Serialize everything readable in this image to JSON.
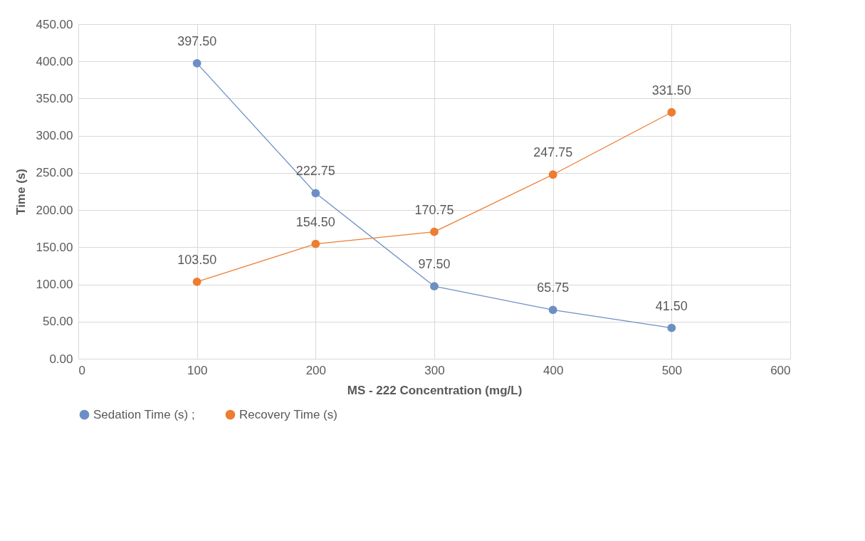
{
  "chart_data": {
    "type": "line",
    "xlabel": "MS - 222 Concentration (mg/L)",
    "ylabel": "Time (s)",
    "x": [
      100,
      200,
      300,
      400,
      500
    ],
    "series": [
      {
        "name": "Sedation Time (s) ;",
        "color": "#6d8fc4",
        "values": [
          397.5,
          222.75,
          97.5,
          65.75,
          41.5
        ],
        "value_labels": [
          "397.50",
          "222.75",
          "97.50",
          "65.75",
          "41.50"
        ]
      },
      {
        "name": "Recovery Time (s)",
        "color": "#ed7d31",
        "values": [
          103.5,
          154.5,
          170.75,
          247.75,
          331.5
        ],
        "value_labels": [
          "103.50",
          "154.50",
          "170.75",
          "247.75",
          "331.50"
        ]
      }
    ],
    "xlim": [
      0,
      600
    ],
    "xticks": [
      0,
      100,
      200,
      300,
      400,
      500,
      600
    ],
    "ylim": [
      0,
      450
    ],
    "yticks": [
      {
        "value": 0,
        "label": "0.00"
      },
      {
        "value": 50,
        "label": "50.00"
      },
      {
        "value": 100,
        "label": "100.00"
      },
      {
        "value": 150,
        "label": "150.00"
      },
      {
        "value": 200,
        "label": "200.00"
      },
      {
        "value": 250,
        "label": "250.00"
      },
      {
        "value": 300,
        "label": "300.00"
      },
      {
        "value": 350,
        "label": "350.00"
      },
      {
        "value": 400,
        "label": "400.00"
      },
      {
        "value": 450,
        "label": "450.00"
      }
    ],
    "grid": true,
    "legend": "bottom",
    "marker": "circle",
    "line_style": "solid"
  }
}
